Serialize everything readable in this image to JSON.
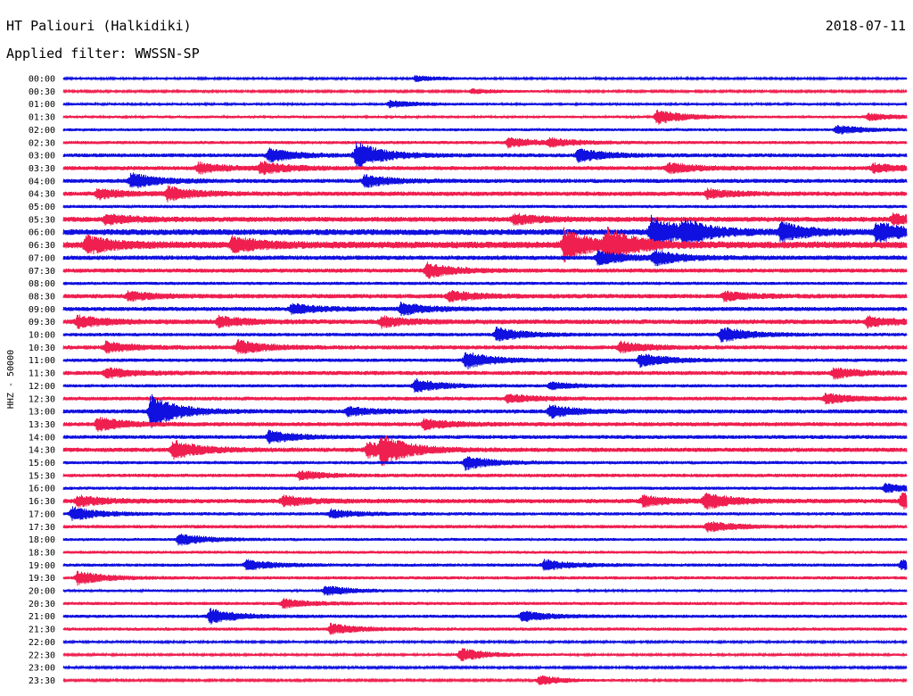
{
  "header": {
    "station": "HT Paliouri (Halkidiki)",
    "date": "2018-07-11",
    "filter_label": "Applied filter: WWSSN-SP"
  },
  "colors": {
    "trace_a": "#1010e0",
    "trace_b": "#ef1f4f"
  },
  "chart_data": {
    "type": "line",
    "title": "HT Paliouri (Halkidiki)",
    "ylabel": "HHZ - 50000",
    "x_unit": "minutes after row start",
    "xlim": [
      0,
      30
    ],
    "rows": [
      {
        "time": "00:00",
        "color": "#1010e0",
        "activity": 0.15,
        "events": [
          {
            "x": 12.5,
            "amp": 0.3
          }
        ]
      },
      {
        "time": "00:30",
        "color": "#ef1f4f",
        "activity": 0.12,
        "events": [
          {
            "x": 14.5,
            "amp": 0.3
          }
        ]
      },
      {
        "time": "01:00",
        "color": "#1010e0",
        "activity": 0.18,
        "events": [
          {
            "x": 11.6,
            "amp": 0.4
          }
        ]
      },
      {
        "time": "01:30",
        "color": "#ef1f4f",
        "activity": 0.2,
        "events": [
          {
            "x": 21.1,
            "amp": 0.9
          },
          {
            "x": 28.6,
            "amp": 0.4
          }
        ]
      },
      {
        "time": "02:00",
        "color": "#1010e0",
        "activity": 0.25,
        "events": [
          {
            "x": 27.5,
            "amp": 0.5
          }
        ]
      },
      {
        "time": "02:30",
        "color": "#ef1f4f",
        "activity": 0.3,
        "events": [
          {
            "x": 15.8,
            "amp": 0.6
          },
          {
            "x": 17.3,
            "amp": 0.4
          }
        ]
      },
      {
        "time": "03:00",
        "color": "#1010e0",
        "activity": 0.4,
        "events": [
          {
            "x": 7.3,
            "amp": 0.8
          },
          {
            "x": 10.4,
            "amp": 1.6
          },
          {
            "x": 18.3,
            "amp": 0.8
          }
        ]
      },
      {
        "time": "03:30",
        "color": "#ef1f4f",
        "activity": 0.45,
        "events": [
          {
            "x": 4.8,
            "amp": 0.6
          },
          {
            "x": 7.0,
            "amp": 0.7
          },
          {
            "x": 21.5,
            "amp": 0.6
          },
          {
            "x": 28.8,
            "amp": 0.5
          }
        ]
      },
      {
        "time": "04:00",
        "color": "#1010e0",
        "activity": 0.45,
        "events": [
          {
            "x": 2.4,
            "amp": 0.9
          },
          {
            "x": 10.7,
            "amp": 0.7
          }
        ]
      },
      {
        "time": "04:30",
        "color": "#ef1f4f",
        "activity": 0.5,
        "events": [
          {
            "x": 1.2,
            "amp": 0.6
          },
          {
            "x": 3.7,
            "amp": 0.8
          },
          {
            "x": 22.9,
            "amp": 0.5
          }
        ]
      },
      {
        "time": "05:00",
        "color": "#1010e0",
        "activity": 0.3,
        "events": []
      },
      {
        "time": "05:30",
        "color": "#ef1f4f",
        "activity": 0.6,
        "events": [
          {
            "x": 1.5,
            "amp": 0.6
          },
          {
            "x": 16.0,
            "amp": 0.6
          },
          {
            "x": 29.5,
            "amp": 0.6
          }
        ]
      },
      {
        "time": "06:00",
        "color": "#1010e0",
        "activity": 0.75,
        "events": [
          {
            "x": 20.9,
            "amp": 2.0
          },
          {
            "x": 22.0,
            "amp": 1.2
          },
          {
            "x": 25.5,
            "amp": 1.1
          },
          {
            "x": 28.9,
            "amp": 1.2
          }
        ]
      },
      {
        "time": "06:30",
        "color": "#ef1f4f",
        "activity": 0.9,
        "events": [
          {
            "x": 0.8,
            "amp": 1.0
          },
          {
            "x": 6.0,
            "amp": 0.9
          },
          {
            "x": 17.8,
            "amp": 1.8
          },
          {
            "x": 19.3,
            "amp": 1.8
          }
        ]
      },
      {
        "time": "07:00",
        "color": "#1010e0",
        "activity": 0.5,
        "events": [
          {
            "x": 19.0,
            "amp": 0.8
          },
          {
            "x": 21.0,
            "amp": 0.8
          }
        ]
      },
      {
        "time": "07:30",
        "color": "#ef1f4f",
        "activity": 0.45,
        "events": [
          {
            "x": 12.9,
            "amp": 0.9
          }
        ]
      },
      {
        "time": "08:00",
        "color": "#1010e0",
        "activity": 0.3,
        "events": []
      },
      {
        "time": "08:30",
        "color": "#ef1f4f",
        "activity": 0.5,
        "events": [
          {
            "x": 2.3,
            "amp": 0.5
          },
          {
            "x": 13.7,
            "amp": 0.6
          },
          {
            "x": 23.5,
            "amp": 0.5
          }
        ]
      },
      {
        "time": "09:00",
        "color": "#1010e0",
        "activity": 0.45,
        "events": [
          {
            "x": 8.1,
            "amp": 0.6
          },
          {
            "x": 12.0,
            "amp": 0.7
          }
        ]
      },
      {
        "time": "09:30",
        "color": "#ef1f4f",
        "activity": 0.55,
        "events": [
          {
            "x": 0.5,
            "amp": 0.7
          },
          {
            "x": 5.5,
            "amp": 0.6
          },
          {
            "x": 11.3,
            "amp": 0.6
          },
          {
            "x": 28.6,
            "amp": 0.6
          }
        ]
      },
      {
        "time": "10:00",
        "color": "#1010e0",
        "activity": 0.35,
        "events": [
          {
            "x": 15.4,
            "amp": 0.8
          },
          {
            "x": 23.4,
            "amp": 0.9
          }
        ]
      },
      {
        "time": "10:30",
        "color": "#ef1f4f",
        "activity": 0.45,
        "events": [
          {
            "x": 1.5,
            "amp": 0.6
          },
          {
            "x": 6.2,
            "amp": 0.8
          },
          {
            "x": 19.8,
            "amp": 0.6
          }
        ]
      },
      {
        "time": "11:00",
        "color": "#1010e0",
        "activity": 0.35,
        "events": [
          {
            "x": 14.3,
            "amp": 1.0
          },
          {
            "x": 20.5,
            "amp": 0.8
          }
        ]
      },
      {
        "time": "11:30",
        "color": "#ef1f4f",
        "activity": 0.45,
        "events": [
          {
            "x": 1.5,
            "amp": 0.6
          },
          {
            "x": 27.4,
            "amp": 0.6
          }
        ]
      },
      {
        "time": "12:00",
        "color": "#1010e0",
        "activity": 0.3,
        "events": [
          {
            "x": 12.5,
            "amp": 0.8
          },
          {
            "x": 17.3,
            "amp": 0.4
          }
        ]
      },
      {
        "time": "12:30",
        "color": "#ef1f4f",
        "activity": 0.4,
        "events": [
          {
            "x": 15.8,
            "amp": 0.5
          },
          {
            "x": 27.1,
            "amp": 0.6
          }
        ]
      },
      {
        "time": "13:00",
        "color": "#1010e0",
        "activity": 0.45,
        "events": [
          {
            "x": 3.1,
            "amp": 2.0
          },
          {
            "x": 10.1,
            "amp": 0.5
          },
          {
            "x": 17.3,
            "amp": 0.7
          }
        ]
      },
      {
        "time": "13:30",
        "color": "#ef1f4f",
        "activity": 0.45,
        "events": [
          {
            "x": 1.2,
            "amp": 0.8
          },
          {
            "x": 12.8,
            "amp": 0.6
          }
        ]
      },
      {
        "time": "14:00",
        "color": "#1010e0",
        "activity": 0.4,
        "events": [
          {
            "x": 7.3,
            "amp": 0.7
          }
        ]
      },
      {
        "time": "14:30",
        "color": "#ef1f4f",
        "activity": 0.5,
        "events": [
          {
            "x": 3.9,
            "amp": 1.1
          },
          {
            "x": 10.8,
            "amp": 0.9
          },
          {
            "x": 11.3,
            "amp": 1.4
          }
        ]
      },
      {
        "time": "15:00",
        "color": "#1010e0",
        "activity": 0.3,
        "events": [
          {
            "x": 14.3,
            "amp": 0.8
          }
        ]
      },
      {
        "time": "15:30",
        "color": "#ef1f4f",
        "activity": 0.35,
        "events": [
          {
            "x": 8.4,
            "amp": 0.5
          }
        ]
      },
      {
        "time": "16:00",
        "color": "#1010e0",
        "activity": 0.3,
        "events": [
          {
            "x": 29.2,
            "amp": 0.5
          }
        ]
      },
      {
        "time": "16:30",
        "color": "#ef1f4f",
        "activity": 0.5,
        "events": [
          {
            "x": 0.5,
            "amp": 0.6
          },
          {
            "x": 7.8,
            "amp": 0.6
          },
          {
            "x": 20.6,
            "amp": 0.6
          },
          {
            "x": 22.8,
            "amp": 0.9
          },
          {
            "x": 29.8,
            "amp": 0.9
          }
        ]
      },
      {
        "time": "17:00",
        "color": "#1010e0",
        "activity": 0.3,
        "events": [
          {
            "x": 0.3,
            "amp": 0.8
          },
          {
            "x": 9.5,
            "amp": 0.5
          }
        ]
      },
      {
        "time": "17:30",
        "color": "#ef1f4f",
        "activity": 0.35,
        "events": [
          {
            "x": 22.9,
            "amp": 0.6
          }
        ]
      },
      {
        "time": "18:00",
        "color": "#1010e0",
        "activity": 0.25,
        "events": [
          {
            "x": 4.1,
            "amp": 0.7
          }
        ]
      },
      {
        "time": "18:30",
        "color": "#ef1f4f",
        "activity": 0.25,
        "events": []
      },
      {
        "time": "19:00",
        "color": "#1010e0",
        "activity": 0.3,
        "events": [
          {
            "x": 6.5,
            "amp": 0.6
          },
          {
            "x": 17.1,
            "amp": 0.6
          },
          {
            "x": 29.8,
            "amp": 0.6
          }
        ]
      },
      {
        "time": "19:30",
        "color": "#ef1f4f",
        "activity": 0.3,
        "events": [
          {
            "x": 0.5,
            "amp": 0.8
          }
        ]
      },
      {
        "time": "20:00",
        "color": "#1010e0",
        "activity": 0.2,
        "events": [
          {
            "x": 9.3,
            "amp": 0.6
          }
        ]
      },
      {
        "time": "20:30",
        "color": "#ef1f4f",
        "activity": 0.3,
        "events": [
          {
            "x": 7.8,
            "amp": 0.5
          }
        ]
      },
      {
        "time": "21:00",
        "color": "#1010e0",
        "activity": 0.3,
        "events": [
          {
            "x": 5.2,
            "amp": 0.9
          },
          {
            "x": 16.3,
            "amp": 0.6
          }
        ]
      },
      {
        "time": "21:30",
        "color": "#ef1f4f",
        "activity": 0.3,
        "events": [
          {
            "x": 9.5,
            "amp": 0.6
          }
        ]
      },
      {
        "time": "22:00",
        "color": "#1010e0",
        "activity": 0.15,
        "events": []
      },
      {
        "time": "22:30",
        "color": "#ef1f4f",
        "activity": 0.15,
        "events": [
          {
            "x": 14.1,
            "amp": 0.8
          }
        ]
      },
      {
        "time": "23:00",
        "color": "#1010e0",
        "activity": 0.12,
        "events": []
      },
      {
        "time": "23:30",
        "color": "#ef1f4f",
        "activity": 0.12,
        "events": [
          {
            "x": 16.9,
            "amp": 0.6
          }
        ]
      }
    ]
  }
}
